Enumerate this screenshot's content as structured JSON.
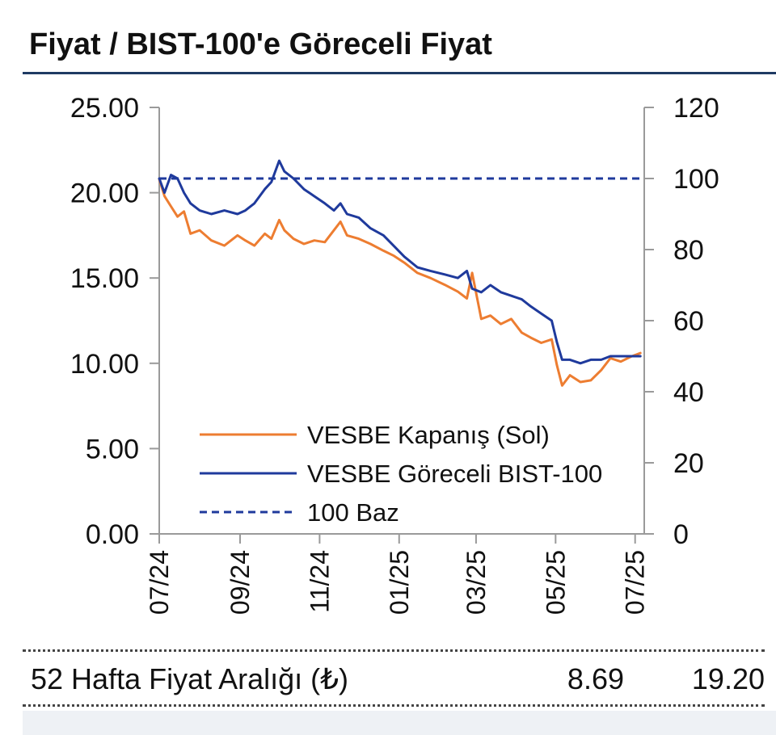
{
  "title": "Fiyat / BIST-100'e Göreceli Fiyat",
  "chart_data": {
    "type": "line",
    "y_left": {
      "ticks": [
        "25.00",
        "20.00",
        "15.00",
        "10.00",
        "5.00",
        "0.00"
      ],
      "range": [
        0,
        25
      ]
    },
    "y_right": {
      "ticks": [
        "120",
        "100",
        "80",
        "60",
        "40",
        "20",
        "0"
      ],
      "range": [
        0,
        120
      ]
    },
    "x_ticks": [
      "07/24",
      "09/24",
      "11/24",
      "01/25",
      "03/25",
      "05/25",
      "07/25"
    ],
    "x_range": [
      "2024-07-01",
      "2025-07-08"
    ],
    "legend_position": "lower-center",
    "series": [
      {
        "name": "VESBE Kapanış (Sol)",
        "axis": "left",
        "color": "#ed7d31",
        "style": "solid",
        "points": [
          [
            "2024-07-01",
            20.8
          ],
          [
            "2024-07-05",
            19.8
          ],
          [
            "2024-07-10",
            19.2
          ],
          [
            "2024-07-15",
            18.6
          ],
          [
            "2024-07-20",
            18.9
          ],
          [
            "2024-07-25",
            17.6
          ],
          [
            "2024-08-01",
            17.8
          ],
          [
            "2024-08-10",
            17.2
          ],
          [
            "2024-08-20",
            16.9
          ],
          [
            "2024-08-30",
            17.5
          ],
          [
            "2024-09-05",
            17.2
          ],
          [
            "2024-09-12",
            16.9
          ],
          [
            "2024-09-20",
            17.6
          ],
          [
            "2024-09-25",
            17.3
          ],
          [
            "2024-10-01",
            18.4
          ],
          [
            "2024-10-05",
            17.8
          ],
          [
            "2024-10-12",
            17.3
          ],
          [
            "2024-10-20",
            17.0
          ],
          [
            "2024-10-28",
            17.2
          ],
          [
            "2024-11-05",
            17.1
          ],
          [
            "2024-11-12",
            17.8
          ],
          [
            "2024-11-17",
            18.3
          ],
          [
            "2024-11-22",
            17.5
          ],
          [
            "2024-12-01",
            17.3
          ],
          [
            "2024-12-10",
            17.0
          ],
          [
            "2024-12-20",
            16.6
          ],
          [
            "2024-12-28",
            16.3
          ],
          [
            "2025-01-05",
            15.9
          ],
          [
            "2025-01-15",
            15.3
          ],
          [
            "2025-01-25",
            15.0
          ],
          [
            "2025-02-05",
            14.6
          ],
          [
            "2025-02-15",
            14.2
          ],
          [
            "2025-02-22",
            13.8
          ],
          [
            "2025-02-26",
            15.3
          ],
          [
            "2025-03-05",
            12.6
          ],
          [
            "2025-03-12",
            12.8
          ],
          [
            "2025-03-20",
            12.3
          ],
          [
            "2025-03-28",
            12.6
          ],
          [
            "2025-04-05",
            11.8
          ],
          [
            "2025-04-12",
            11.5
          ],
          [
            "2025-04-20",
            11.2
          ],
          [
            "2025-04-28",
            11.4
          ],
          [
            "2025-05-02",
            9.9
          ],
          [
            "2025-05-06",
            8.7
          ],
          [
            "2025-05-12",
            9.3
          ],
          [
            "2025-05-20",
            8.9
          ],
          [
            "2025-05-28",
            9.0
          ],
          [
            "2025-06-05",
            9.6
          ],
          [
            "2025-06-12",
            10.3
          ],
          [
            "2025-06-20",
            10.1
          ],
          [
            "2025-06-28",
            10.4
          ],
          [
            "2025-07-05",
            10.6
          ]
        ]
      },
      {
        "name": "VESBE Göreceli BIST-100",
        "axis": "right",
        "color": "#1f3a9c",
        "style": "solid",
        "points": [
          [
            "2024-07-01",
            100
          ],
          [
            "2024-07-05",
            96
          ],
          [
            "2024-07-10",
            101
          ],
          [
            "2024-07-15",
            100
          ],
          [
            "2024-07-20",
            96
          ],
          [
            "2024-07-25",
            93
          ],
          [
            "2024-08-01",
            91
          ],
          [
            "2024-08-10",
            90
          ],
          [
            "2024-08-20",
            91
          ],
          [
            "2024-08-30",
            90
          ],
          [
            "2024-09-05",
            91
          ],
          [
            "2024-09-12",
            93
          ],
          [
            "2024-09-20",
            97
          ],
          [
            "2024-09-25",
            99
          ],
          [
            "2024-10-01",
            105
          ],
          [
            "2024-10-05",
            102
          ],
          [
            "2024-10-12",
            100
          ],
          [
            "2024-10-20",
            97
          ],
          [
            "2024-10-28",
            95
          ],
          [
            "2024-11-05",
            93
          ],
          [
            "2024-11-12",
            91
          ],
          [
            "2024-11-17",
            93
          ],
          [
            "2024-11-22",
            90
          ],
          [
            "2024-12-01",
            89
          ],
          [
            "2024-12-10",
            86
          ],
          [
            "2024-12-20",
            84
          ],
          [
            "2024-12-28",
            81
          ],
          [
            "2025-01-05",
            78
          ],
          [
            "2025-01-15",
            75
          ],
          [
            "2025-01-25",
            74
          ],
          [
            "2025-02-05",
            73
          ],
          [
            "2025-02-15",
            72
          ],
          [
            "2025-02-22",
            74
          ],
          [
            "2025-02-26",
            69
          ],
          [
            "2025-03-05",
            68
          ],
          [
            "2025-03-12",
            70
          ],
          [
            "2025-03-20",
            68
          ],
          [
            "2025-03-28",
            67
          ],
          [
            "2025-04-05",
            66
          ],
          [
            "2025-04-12",
            64
          ],
          [
            "2025-04-20",
            62
          ],
          [
            "2025-04-28",
            60
          ],
          [
            "2025-05-02",
            54
          ],
          [
            "2025-05-06",
            49
          ],
          [
            "2025-05-12",
            49
          ],
          [
            "2025-05-20",
            48
          ],
          [
            "2025-05-28",
            49
          ],
          [
            "2025-06-05",
            49
          ],
          [
            "2025-06-12",
            50
          ],
          [
            "2025-06-20",
            50
          ],
          [
            "2025-06-28",
            50
          ],
          [
            "2025-07-05",
            50
          ]
        ]
      },
      {
        "name": "100 Baz",
        "axis": "right",
        "color": "#1f3a9c",
        "style": "dashed",
        "points": [
          [
            "2024-07-01",
            100
          ],
          [
            "2025-07-05",
            100
          ]
        ]
      }
    ]
  },
  "footer": {
    "range_label": "52 Hafta Fiyat Aralığı (₺)",
    "range_low": "8.69",
    "range_high": "19.20"
  }
}
